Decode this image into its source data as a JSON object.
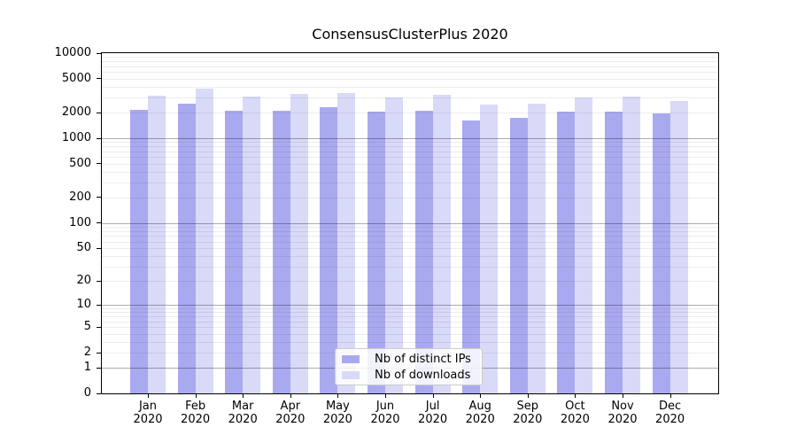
{
  "chart_data": {
    "type": "bar",
    "title": "ConsensusClusterPlus 2020",
    "categories": [
      "Jan 2020",
      "Feb 2020",
      "Mar 2020",
      "Apr 2020",
      "May 2020",
      "Jun 2020",
      "Jul 2020",
      "Aug 2020",
      "Sep 2020",
      "Oct 2020",
      "Nov 2020",
      "Dec 2020"
    ],
    "month_labels": [
      "Jan",
      "Feb",
      "Mar",
      "Apr",
      "May",
      "Jun",
      "Jul",
      "Aug",
      "Sep",
      "Oct",
      "Nov",
      "Dec"
    ],
    "year_label": "2020",
    "series": [
      {
        "name": "Nb of distinct IPs",
        "color": "#a9a9f0",
        "values": [
          2140,
          2560,
          2100,
          2110,
          2320,
          2040,
          2110,
          1630,
          1730,
          2060,
          2070,
          1950
        ]
      },
      {
        "name": "Nb of downloads",
        "color": "#d9d9f8",
        "values": [
          3180,
          3800,
          3080,
          3290,
          3370,
          3010,
          3240,
          2470,
          2550,
          2990,
          3080,
          2740
        ]
      }
    ],
    "yscale": "log10(1+v)",
    "ylim": [
      0,
      10000
    ],
    "yticks": [
      0,
      1,
      2,
      5,
      10,
      20,
      50,
      100,
      200,
      500,
      1000,
      2000,
      5000,
      10000
    ],
    "grid": true,
    "legend_position": "bottom-center",
    "colors": {
      "axis": "#000000",
      "major_gridline": "#b0b0b0",
      "minor_gridline": "#ececec",
      "legend_border": "#cccccc"
    }
  }
}
